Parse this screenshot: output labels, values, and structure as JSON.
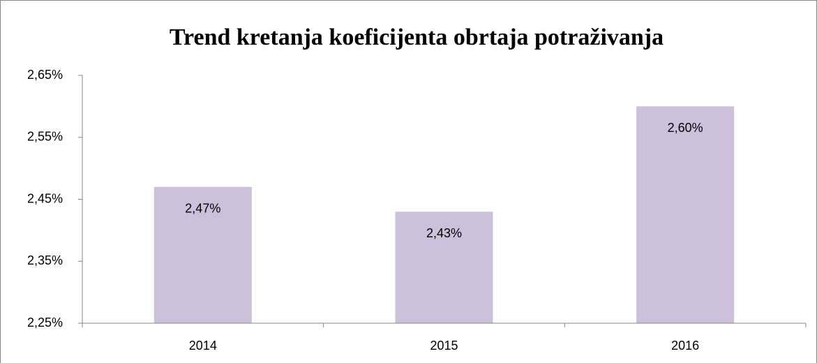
{
  "chart_data": {
    "type": "bar",
    "title": "Trend kretanja koeficijenta obrtaja potraživanja",
    "categories": [
      "2014",
      "2015",
      "2016"
    ],
    "values": [
      2.47,
      2.43,
      2.6
    ],
    "value_labels": [
      "2,47%",
      "2,43%",
      "2,60%"
    ],
    "color": "#ccc0da",
    "ylim": [
      2.25,
      2.65
    ],
    "yticks": [
      {
        "value": 2.25,
        "label": "2,25%"
      },
      {
        "value": 2.35,
        "label": "2,35%"
      },
      {
        "value": 2.45,
        "label": "2,45%"
      },
      {
        "value": 2.55,
        "label": "2,55%"
      },
      {
        "value": 2.65,
        "label": "2,65%"
      }
    ],
    "grid": false
  }
}
